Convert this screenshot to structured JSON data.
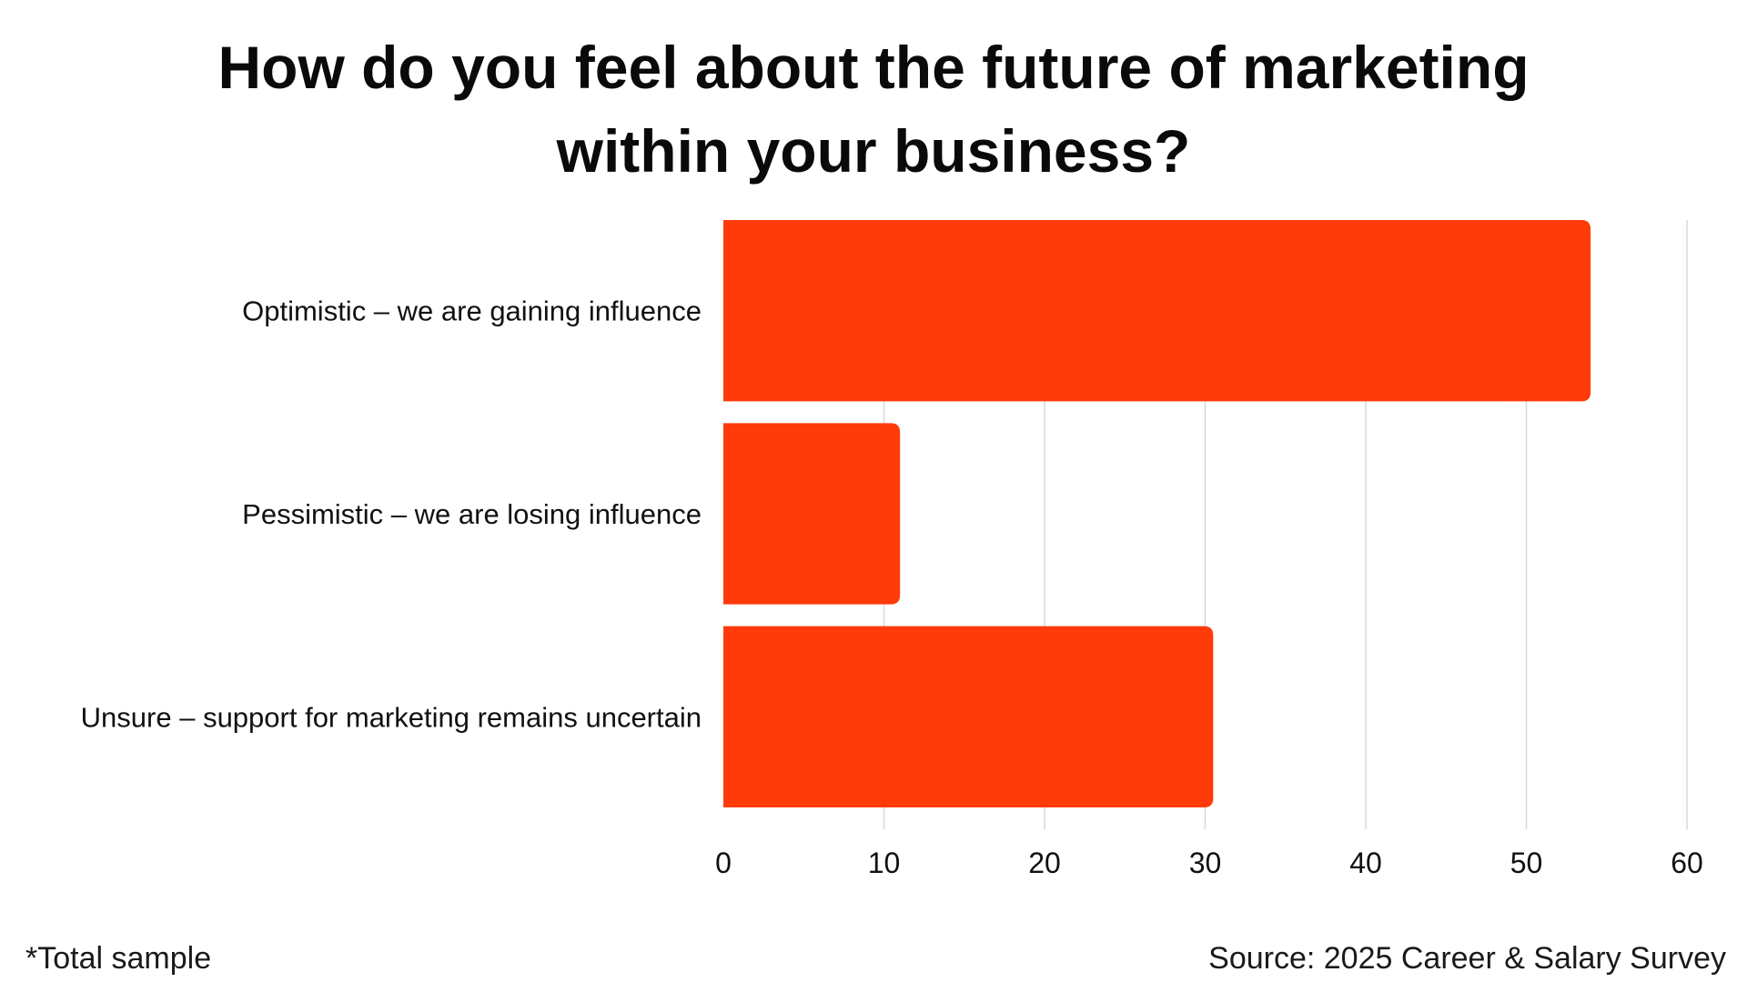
{
  "title": "How do you feel about the future of marketing within your business?",
  "footnote": "*Total sample",
  "source": "Source: 2025 Career & Salary Survey",
  "colors": {
    "bar": "#FF3B0A",
    "grid": "#D9D9D9",
    "text": "#111111"
  },
  "chart_data": {
    "type": "bar",
    "orientation": "horizontal",
    "categories": [
      "Optimistic – we are gaining influence",
      "Pessimistic – we are losing influence",
      "Unsure – support for marketing remains uncertain"
    ],
    "values": [
      54,
      11,
      30.5
    ],
    "xlim": [
      0,
      60
    ],
    "xticks": [
      0,
      10,
      20,
      30,
      40,
      50,
      60
    ],
    "xlabel": "",
    "ylabel": "",
    "grid": true,
    "legend": "none"
  }
}
